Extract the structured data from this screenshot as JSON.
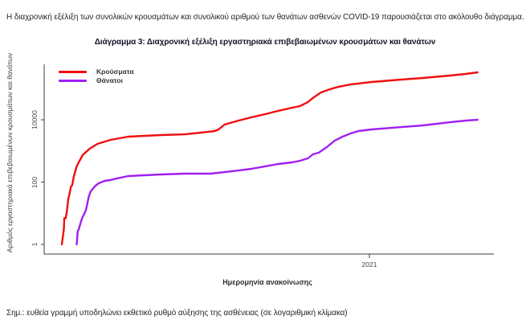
{
  "document": {
    "intro": "Η διαχρονική εξέλιξη των συνολικών κρουσμάτων και συνολικού αριθμού των θανάτων ασθενών COVID-19 παρουσιάζεται στο ακόλουθο διάγραμμα.",
    "note": "Σημ.: ευθεία γραμμή υποδηλώνει εκθετικό ρυθμό αύξησης της ασθένειας (σε λογαριθμική κλίμακα)"
  },
  "figure": {
    "title": "Διάγραμμα 3: Διαχρονική εξέλιξη εργαστηριακά επιβεβαιωμένων κρουσμάτων και θανάτων"
  },
  "colors": {
    "cases_line": "#f00f0f",
    "deaths_line": "#a020f0",
    "axis": "#3c3c3c",
    "text": "#262626",
    "title_text": "#15152a"
  },
  "chart_data": {
    "type": "line",
    "title": "Διάγραμμα 3: Διαχρονική εξέλιξη εργαστηριακά επιβεβαιωμένων κρουσμάτων και θανάτων",
    "xlabel": "Ημερομηνία ανακοίνωσης",
    "ylabel": "Αριθμός εργαστηριακά επιβεβαιωμένων κρουσμάτων και θανάτων",
    "y_scale": "log10",
    "grid": false,
    "legend_position": "top-left",
    "y_ticks": [
      10000,
      100,
      1
    ],
    "y_tick_labels": [
      "10000",
      "100",
      "1"
    ],
    "x_tick_labels": [
      "2021"
    ],
    "x_tick_day": 310,
    "x_range_days": [
      0,
      419
    ],
    "series": [
      {
        "name": "Κρούσματα",
        "color": "#f00f0f",
        "points": [
          [
            0,
            1
          ],
          [
            1,
            1.7
          ],
          [
            2,
            3
          ],
          [
            2.5,
            7
          ],
          [
            4,
            7
          ],
          [
            5,
            11
          ],
          [
            6.5,
            28
          ],
          [
            8,
            45
          ],
          [
            9,
            68
          ],
          [
            10.5,
            81
          ],
          [
            12,
            147
          ],
          [
            15,
            320
          ],
          [
            17,
            430
          ],
          [
            21,
            735
          ],
          [
            28,
            1180
          ],
          [
            36,
            1690
          ],
          [
            49,
            2270
          ],
          [
            67,
            2870
          ],
          [
            83,
            3050
          ],
          [
            100,
            3230
          ],
          [
            124,
            3420
          ],
          [
            140,
            3870
          ],
          [
            154,
            4350
          ],
          [
            158,
            4900
          ],
          [
            164,
            7000
          ],
          [
            178,
            9400
          ],
          [
            191,
            12000
          ],
          [
            205,
            15200
          ],
          [
            218,
            19300
          ],
          [
            232,
            24400
          ],
          [
            240,
            27500
          ],
          [
            248,
            37000
          ],
          [
            253,
            50000
          ],
          [
            261,
            75000
          ],
          [
            270,
            95000
          ],
          [
            278,
            113000
          ],
          [
            291,
            136000
          ],
          [
            312,
            163000
          ],
          [
            342,
            195000
          ],
          [
            364,
            220000
          ],
          [
            391,
            263000
          ],
          [
            407,
            295000
          ],
          [
            419,
            333000
          ]
        ]
      },
      {
        "name": "Θάνατοι",
        "color": "#a020f0",
        "points": [
          [
            15,
            1
          ],
          [
            15.5,
            1.7
          ],
          [
            16,
            2.7
          ],
          [
            17,
            3
          ],
          [
            19,
            5
          ],
          [
            20,
            6.3
          ],
          [
            21,
            7.5
          ],
          [
            24,
            12
          ],
          [
            25,
            16
          ],
          [
            27,
            33
          ],
          [
            29,
            50
          ],
          [
            33,
            72
          ],
          [
            37,
            91
          ],
          [
            43,
            109
          ],
          [
            49,
            116
          ],
          [
            55,
            130
          ],
          [
            67,
            156
          ],
          [
            83,
            166
          ],
          [
            100,
            176
          ],
          [
            124,
            187
          ],
          [
            150,
            187
          ],
          [
            164,
            209
          ],
          [
            178,
            235
          ],
          [
            191,
            267
          ],
          [
            205,
            320
          ],
          [
            218,
            380
          ],
          [
            232,
            429
          ],
          [
            240,
            482
          ],
          [
            248,
            577
          ],
          [
            253,
            779
          ],
          [
            259,
            880
          ],
          [
            267,
            1330
          ],
          [
            275,
            2140
          ],
          [
            283,
            2870
          ],
          [
            291,
            3650
          ],
          [
            299,
            4360
          ],
          [
            312,
            4900
          ],
          [
            342,
            5840
          ],
          [
            364,
            6600
          ],
          [
            391,
            8300
          ],
          [
            407,
            9400
          ],
          [
            419,
            10000
          ]
        ]
      }
    ]
  }
}
